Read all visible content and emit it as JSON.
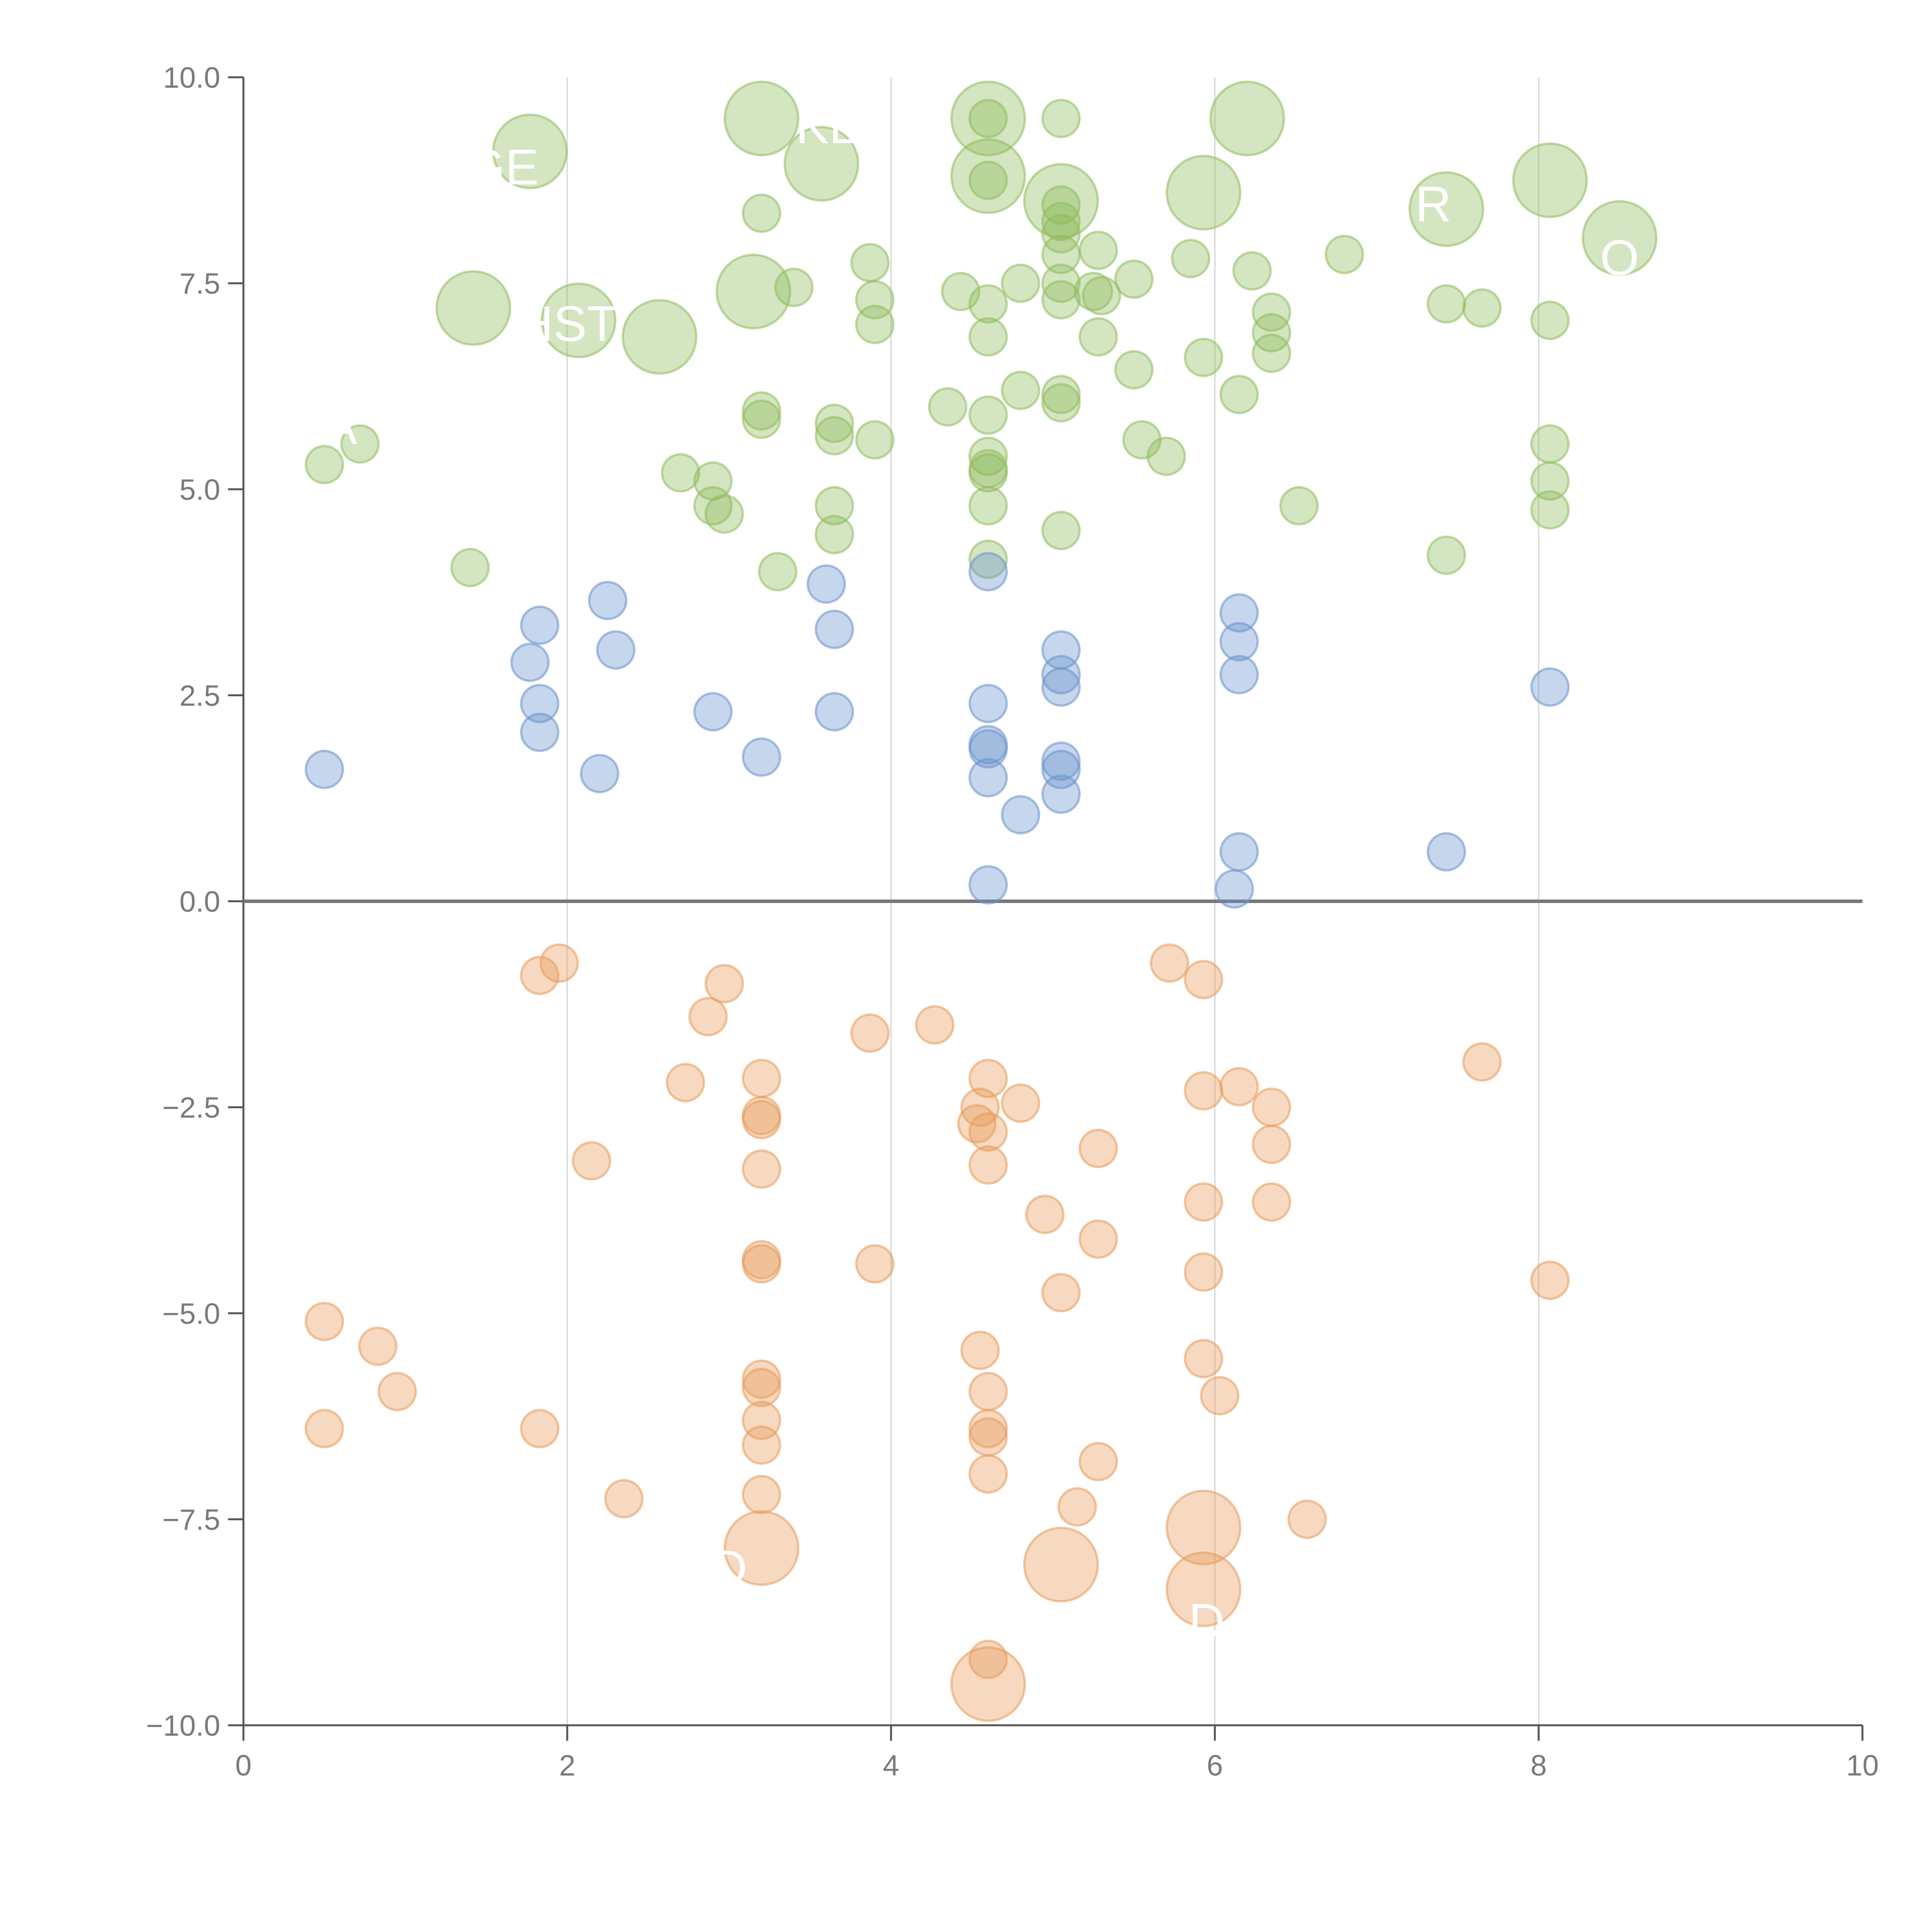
{
  "chart_data": {
    "type": "scatter",
    "subtype": "bubble",
    "title": "",
    "xlabel": "",
    "ylabel": "",
    "xlim": [
      0,
      10
    ],
    "ylim": [
      -10,
      10
    ],
    "xticks": [
      0,
      2,
      4,
      6,
      8,
      10
    ],
    "xtick_labels": [
      "0",
      "2",
      "4",
      "6",
      "8",
      "10"
    ],
    "yticks": [
      -10,
      -7.5,
      -5,
      -2.5,
      0,
      2.5,
      5,
      7.5,
      10
    ],
    "ytick_labels": [
      "−10.0",
      "−7.5",
      "−5.0",
      "−2.5",
      "0.0",
      "2.5",
      "5.0",
      "7.5",
      "10.0"
    ],
    "vertical_gridlines_at": [
      2,
      4,
      6,
      8
    ],
    "zero_line": true,
    "legend": "none",
    "colors": {
      "green": "#8fbb5c",
      "blue": "#6a92cc",
      "orange": "#e79a5a",
      "axis": "#555555",
      "grid": "#dddddd",
      "zero_line": "#777777"
    },
    "series": [
      {
        "name": "green",
        "color": "#8fbb5c",
        "points": [
          {
            "x": 3.2,
            "y": 9.5,
            "size": 3
          },
          {
            "x": 4.6,
            "y": 9.5,
            "size": 3
          },
          {
            "x": 6.2,
            "y": 9.5,
            "size": 3
          },
          {
            "x": 1.77,
            "y": 9.1,
            "size": 3
          },
          {
            "x": 3.57,
            "y": 8.95,
            "size": 3
          },
          {
            "x": 4.6,
            "y": 8.8,
            "size": 3
          },
          {
            "x": 5.05,
            "y": 8.5,
            "size": 3
          },
          {
            "x": 5.93,
            "y": 8.6,
            "size": 3
          },
          {
            "x": 8.07,
            "y": 8.75,
            "size": 3
          },
          {
            "x": 7.43,
            "y": 8.4,
            "size": 3
          },
          {
            "x": 8.5,
            "y": 8.05,
            "size": 3
          },
          {
            "x": 3.15,
            "y": 7.4,
            "size": 3
          },
          {
            "x": 1.42,
            "y": 7.2,
            "size": 3
          },
          {
            "x": 2.07,
            "y": 7.05,
            "size": 3
          },
          {
            "x": 2.57,
            "y": 6.85,
            "size": 3
          },
          {
            "x": 4.6,
            "y": 9.5,
            "size": 1
          },
          {
            "x": 5.05,
            "y": 9.5,
            "size": 1
          },
          {
            "x": 4.6,
            "y": 8.75,
            "size": 1
          },
          {
            "x": 5.05,
            "y": 8.45,
            "size": 1
          },
          {
            "x": 5.05,
            "y": 8.25,
            "size": 1
          },
          {
            "x": 5.05,
            "y": 8.1,
            "size": 1
          },
          {
            "x": 5.05,
            "y": 7.85,
            "size": 1
          },
          {
            "x": 3.2,
            "y": 8.35,
            "size": 1
          },
          {
            "x": 5.28,
            "y": 7.9,
            "size": 1
          },
          {
            "x": 5.85,
            "y": 7.8,
            "size": 1
          },
          {
            "x": 6.8,
            "y": 7.85,
            "size": 1
          },
          {
            "x": 6.23,
            "y": 7.65,
            "size": 1
          },
          {
            "x": 3.87,
            "y": 7.75,
            "size": 1
          },
          {
            "x": 3.4,
            "y": 7.45,
            "size": 1
          },
          {
            "x": 4.43,
            "y": 7.4,
            "size": 1
          },
          {
            "x": 4.8,
            "y": 7.5,
            "size": 1
          },
          {
            "x": 5.05,
            "y": 7.5,
            "size": 1
          },
          {
            "x": 5.25,
            "y": 7.4,
            "size": 1
          },
          {
            "x": 5.5,
            "y": 7.55,
            "size": 1
          },
          {
            "x": 3.9,
            "y": 7.3,
            "size": 1
          },
          {
            "x": 4.6,
            "y": 7.25,
            "size": 1
          },
          {
            "x": 5.05,
            "y": 7.3,
            "size": 1
          },
          {
            "x": 5.3,
            "y": 7.35,
            "size": 1
          },
          {
            "x": 6.35,
            "y": 7.15,
            "size": 1
          },
          {
            "x": 7.43,
            "y": 7.25,
            "size": 1
          },
          {
            "x": 7.65,
            "y": 7.2,
            "size": 1
          },
          {
            "x": 3.9,
            "y": 7.0,
            "size": 1
          },
          {
            "x": 8.07,
            "y": 7.05,
            "size": 1
          },
          {
            "x": 4.6,
            "y": 6.85,
            "size": 1
          },
          {
            "x": 5.28,
            "y": 6.85,
            "size": 1
          },
          {
            "x": 6.35,
            "y": 6.9,
            "size": 1
          },
          {
            "x": 6.35,
            "y": 6.65,
            "size": 1
          },
          {
            "x": 5.93,
            "y": 6.6,
            "size": 1
          },
          {
            "x": 5.5,
            "y": 6.45,
            "size": 1
          },
          {
            "x": 4.8,
            "y": 6.2,
            "size": 1
          },
          {
            "x": 5.05,
            "y": 6.15,
            "size": 1
          },
          {
            "x": 5.05,
            "y": 6.05,
            "size": 1
          },
          {
            "x": 6.15,
            "y": 6.15,
            "size": 1
          },
          {
            "x": 4.35,
            "y": 6.0,
            "size": 1
          },
          {
            "x": 4.6,
            "y": 5.9,
            "size": 1
          },
          {
            "x": 3.2,
            "y": 5.95,
            "size": 1
          },
          {
            "x": 3.2,
            "y": 5.85,
            "size": 1
          },
          {
            "x": 3.65,
            "y": 5.8,
            "size": 1
          },
          {
            "x": 3.65,
            "y": 5.65,
            "size": 1
          },
          {
            "x": 3.9,
            "y": 5.6,
            "size": 1
          },
          {
            "x": 5.55,
            "y": 5.6,
            "size": 1
          },
          {
            "x": 5.7,
            "y": 5.4,
            "size": 1
          },
          {
            "x": 4.6,
            "y": 5.4,
            "size": 1
          },
          {
            "x": 4.6,
            "y": 5.25,
            "size": 1
          },
          {
            "x": 4.6,
            "y": 5.2,
            "size": 1
          },
          {
            "x": 0.5,
            "y": 5.3,
            "size": 1
          },
          {
            "x": 0.72,
            "y": 5.55,
            "size": 1
          },
          {
            "x": 2.7,
            "y": 5.2,
            "size": 1
          },
          {
            "x": 2.9,
            "y": 5.1,
            "size": 1
          },
          {
            "x": 8.07,
            "y": 5.55,
            "size": 1
          },
          {
            "x": 8.07,
            "y": 5.1,
            "size": 1
          },
          {
            "x": 8.07,
            "y": 4.75,
            "size": 1
          },
          {
            "x": 2.9,
            "y": 4.8,
            "size": 1
          },
          {
            "x": 2.97,
            "y": 4.7,
            "size": 1
          },
          {
            "x": 3.65,
            "y": 4.8,
            "size": 1
          },
          {
            "x": 4.6,
            "y": 4.8,
            "size": 1
          },
          {
            "x": 6.52,
            "y": 4.8,
            "size": 1
          },
          {
            "x": 3.65,
            "y": 4.45,
            "size": 1
          },
          {
            "x": 5.05,
            "y": 4.5,
            "size": 1
          },
          {
            "x": 4.6,
            "y": 4.15,
            "size": 1
          },
          {
            "x": 7.43,
            "y": 4.2,
            "size": 1
          },
          {
            "x": 1.4,
            "y": 4.05,
            "size": 1
          },
          {
            "x": 3.3,
            "y": 4.0,
            "size": 1
          }
        ]
      },
      {
        "name": "blue",
        "color": "#6a92cc",
        "points": [
          {
            "x": 4.6,
            "y": 4.0,
            "size": 1
          },
          {
            "x": 3.6,
            "y": 3.85,
            "size": 1
          },
          {
            "x": 2.25,
            "y": 3.65,
            "size": 1
          },
          {
            "x": 6.15,
            "y": 3.5,
            "size": 1
          },
          {
            "x": 1.83,
            "y": 3.35,
            "size": 1
          },
          {
            "x": 3.65,
            "y": 3.3,
            "size": 1
          },
          {
            "x": 6.15,
            "y": 3.15,
            "size": 1
          },
          {
            "x": 2.3,
            "y": 3.05,
            "size": 1
          },
          {
            "x": 5.05,
            "y": 3.05,
            "size": 1
          },
          {
            "x": 1.77,
            "y": 2.9,
            "size": 1
          },
          {
            "x": 6.15,
            "y": 2.75,
            "size": 1
          },
          {
            "x": 5.05,
            "y": 2.75,
            "size": 1
          },
          {
            "x": 5.05,
            "y": 2.6,
            "size": 1
          },
          {
            "x": 8.07,
            "y": 2.6,
            "size": 1
          },
          {
            "x": 4.6,
            "y": 2.4,
            "size": 1
          },
          {
            "x": 1.83,
            "y": 2.4,
            "size": 1
          },
          {
            "x": 2.9,
            "y": 2.3,
            "size": 1
          },
          {
            "x": 3.65,
            "y": 2.3,
            "size": 1
          },
          {
            "x": 1.83,
            "y": 2.05,
            "size": 1
          },
          {
            "x": 4.6,
            "y": 1.9,
            "size": 1
          },
          {
            "x": 4.6,
            "y": 1.85,
            "size": 1
          },
          {
            "x": 3.2,
            "y": 1.75,
            "size": 1
          },
          {
            "x": 5.05,
            "y": 1.7,
            "size": 1
          },
          {
            "x": 5.05,
            "y": 1.6,
            "size": 1
          },
          {
            "x": 0.5,
            "y": 1.6,
            "size": 1
          },
          {
            "x": 2.2,
            "y": 1.55,
            "size": 1
          },
          {
            "x": 4.6,
            "y": 1.5,
            "size": 1
          },
          {
            "x": 5.05,
            "y": 1.3,
            "size": 1
          },
          {
            "x": 4.8,
            "y": 1.05,
            "size": 1
          },
          {
            "x": 6.15,
            "y": 0.6,
            "size": 1
          },
          {
            "x": 7.43,
            "y": 0.6,
            "size": 1
          },
          {
            "x": 4.6,
            "y": 0.2,
            "size": 1
          },
          {
            "x": 6.12,
            "y": 0.15,
            "size": 1
          }
        ]
      },
      {
        "name": "orange",
        "color": "#e79a5a",
        "points": [
          {
            "x": 5.72,
            "y": -0.75,
            "size": 1
          },
          {
            "x": 1.95,
            "y": -0.75,
            "size": 1
          },
          {
            "x": 1.83,
            "y": -0.9,
            "size": 1
          },
          {
            "x": 5.93,
            "y": -0.95,
            "size": 1
          },
          {
            "x": 2.97,
            "y": -1.0,
            "size": 1
          },
          {
            "x": 2.87,
            "y": -1.4,
            "size": 1
          },
          {
            "x": 4.27,
            "y": -1.5,
            "size": 1
          },
          {
            "x": 3.87,
            "y": -1.6,
            "size": 1
          },
          {
            "x": 7.65,
            "y": -1.95,
            "size": 1
          },
          {
            "x": 3.2,
            "y": -2.15,
            "size": 1
          },
          {
            "x": 4.6,
            "y": -2.15,
            "size": 1
          },
          {
            "x": 2.73,
            "y": -2.2,
            "size": 1
          },
          {
            "x": 5.93,
            "y": -2.3,
            "size": 1
          },
          {
            "x": 6.15,
            "y": -2.25,
            "size": 1
          },
          {
            "x": 4.8,
            "y": -2.45,
            "size": 1
          },
          {
            "x": 4.55,
            "y": -2.5,
            "size": 1
          },
          {
            "x": 6.35,
            "y": -2.5,
            "size": 1
          },
          {
            "x": 3.2,
            "y": -2.6,
            "size": 1
          },
          {
            "x": 3.2,
            "y": -2.65,
            "size": 1
          },
          {
            "x": 4.53,
            "y": -2.7,
            "size": 1
          },
          {
            "x": 4.6,
            "y": -2.8,
            "size": 1
          },
          {
            "x": 5.28,
            "y": -3.0,
            "size": 1
          },
          {
            "x": 6.35,
            "y": -2.95,
            "size": 1
          },
          {
            "x": 2.15,
            "y": -3.15,
            "size": 1
          },
          {
            "x": 4.6,
            "y": -3.2,
            "size": 1
          },
          {
            "x": 3.2,
            "y": -3.25,
            "size": 1
          },
          {
            "x": 5.93,
            "y": -3.65,
            "size": 1
          },
          {
            "x": 6.35,
            "y": -3.65,
            "size": 1
          },
          {
            "x": 4.95,
            "y": -3.8,
            "size": 1
          },
          {
            "x": 5.28,
            "y": -4.1,
            "size": 1
          },
          {
            "x": 3.2,
            "y": -4.35,
            "size": 1
          },
          {
            "x": 3.2,
            "y": -4.4,
            "size": 1
          },
          {
            "x": 3.9,
            "y": -4.4,
            "size": 1
          },
          {
            "x": 5.93,
            "y": -4.5,
            "size": 1
          },
          {
            "x": 8.07,
            "y": -4.6,
            "size": 1
          },
          {
            "x": 5.05,
            "y": -4.75,
            "size": 1
          },
          {
            "x": 0.5,
            "y": -5.1,
            "size": 1
          },
          {
            "x": 0.83,
            "y": -5.4,
            "size": 1
          },
          {
            "x": 4.55,
            "y": -5.45,
            "size": 1
          },
          {
            "x": 5.93,
            "y": -5.55,
            "size": 1
          },
          {
            "x": 3.2,
            "y": -5.8,
            "size": 1
          },
          {
            "x": 3.2,
            "y": -5.9,
            "size": 1
          },
          {
            "x": 0.95,
            "y": -5.95,
            "size": 1
          },
          {
            "x": 4.6,
            "y": -5.95,
            "size": 1
          },
          {
            "x": 6.03,
            "y": -6.0,
            "size": 1
          },
          {
            "x": 3.2,
            "y": -6.3,
            "size": 1
          },
          {
            "x": 1.83,
            "y": -6.4,
            "size": 1
          },
          {
            "x": 0.5,
            "y": -6.4,
            "size": 1
          },
          {
            "x": 4.6,
            "y": -6.4,
            "size": 1
          },
          {
            "x": 4.6,
            "y": -6.5,
            "size": 1
          },
          {
            "x": 3.2,
            "y": -6.6,
            "size": 1
          },
          {
            "x": 5.28,
            "y": -6.8,
            "size": 1
          },
          {
            "x": 4.6,
            "y": -6.95,
            "size": 1
          },
          {
            "x": 3.2,
            "y": -7.2,
            "size": 1
          },
          {
            "x": 2.35,
            "y": -7.25,
            "size": 1
          },
          {
            "x": 5.15,
            "y": -7.35,
            "size": 1
          },
          {
            "x": 6.57,
            "y": -7.5,
            "size": 1
          },
          {
            "x": 4.6,
            "y": -9.2,
            "size": 1
          },
          {
            "x": 5.93,
            "y": -7.6,
            "size": 3
          },
          {
            "x": 3.2,
            "y": -7.85,
            "size": 3
          },
          {
            "x": 5.05,
            "y": -8.05,
            "size": 3
          },
          {
            "x": 5.93,
            "y": -8.35,
            "size": 3
          },
          {
            "x": 4.6,
            "y": -9.5,
            "size": 3
          }
        ]
      }
    ],
    "annotations": [
      {
        "text": "KL",
        "x": 3.6,
        "y": 9.2
      },
      {
        "text": "HST",
        "x": 2.0,
        "y": 6.8
      },
      {
        "text": "R",
        "x": 7.35,
        "y": 8.25
      },
      {
        "text": "GE",
        "x": 1.6,
        "y": 8.7
      },
      {
        "text": "A",
        "x": 0.6,
        "y": 5.55
      },
      {
        "text": "O",
        "x": 8.5,
        "y": 7.6
      },
      {
        "text": "D",
        "x": 3.0,
        "y": -8.3
      },
      {
        "text": "D",
        "x": 5.95,
        "y": -8.95
      }
    ]
  }
}
